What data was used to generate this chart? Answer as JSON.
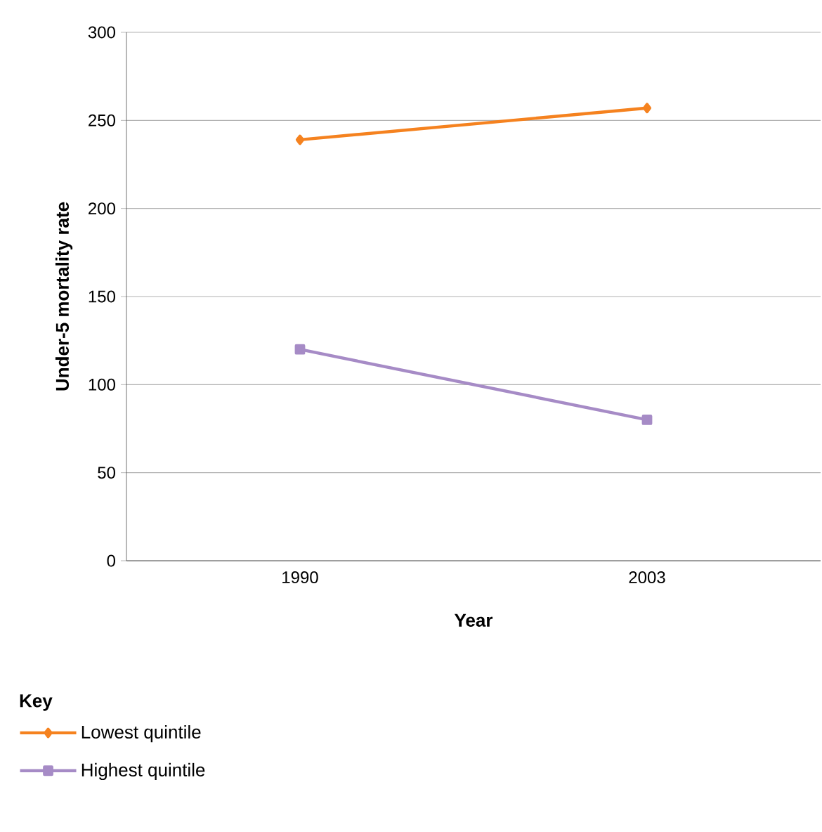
{
  "chart_data": {
    "type": "line",
    "xlabel": "Year",
    "ylabel": "Under-5 mortality rate",
    "legend_title": "Key",
    "categories": [
      "1990",
      "2003"
    ],
    "series": [
      {
        "name": "Lowest quintile",
        "color": "#f5821f",
        "marker": "diamond",
        "values": [
          239,
          257
        ]
      },
      {
        "name": "Highest quintile",
        "color": "#a68bc6",
        "marker": "square",
        "values": [
          120,
          80
        ]
      }
    ],
    "ylim": [
      0,
      300
    ],
    "yticks": [
      0,
      50,
      100,
      150,
      200,
      250,
      300
    ],
    "grid": "y",
    "legend": "bottom left"
  }
}
